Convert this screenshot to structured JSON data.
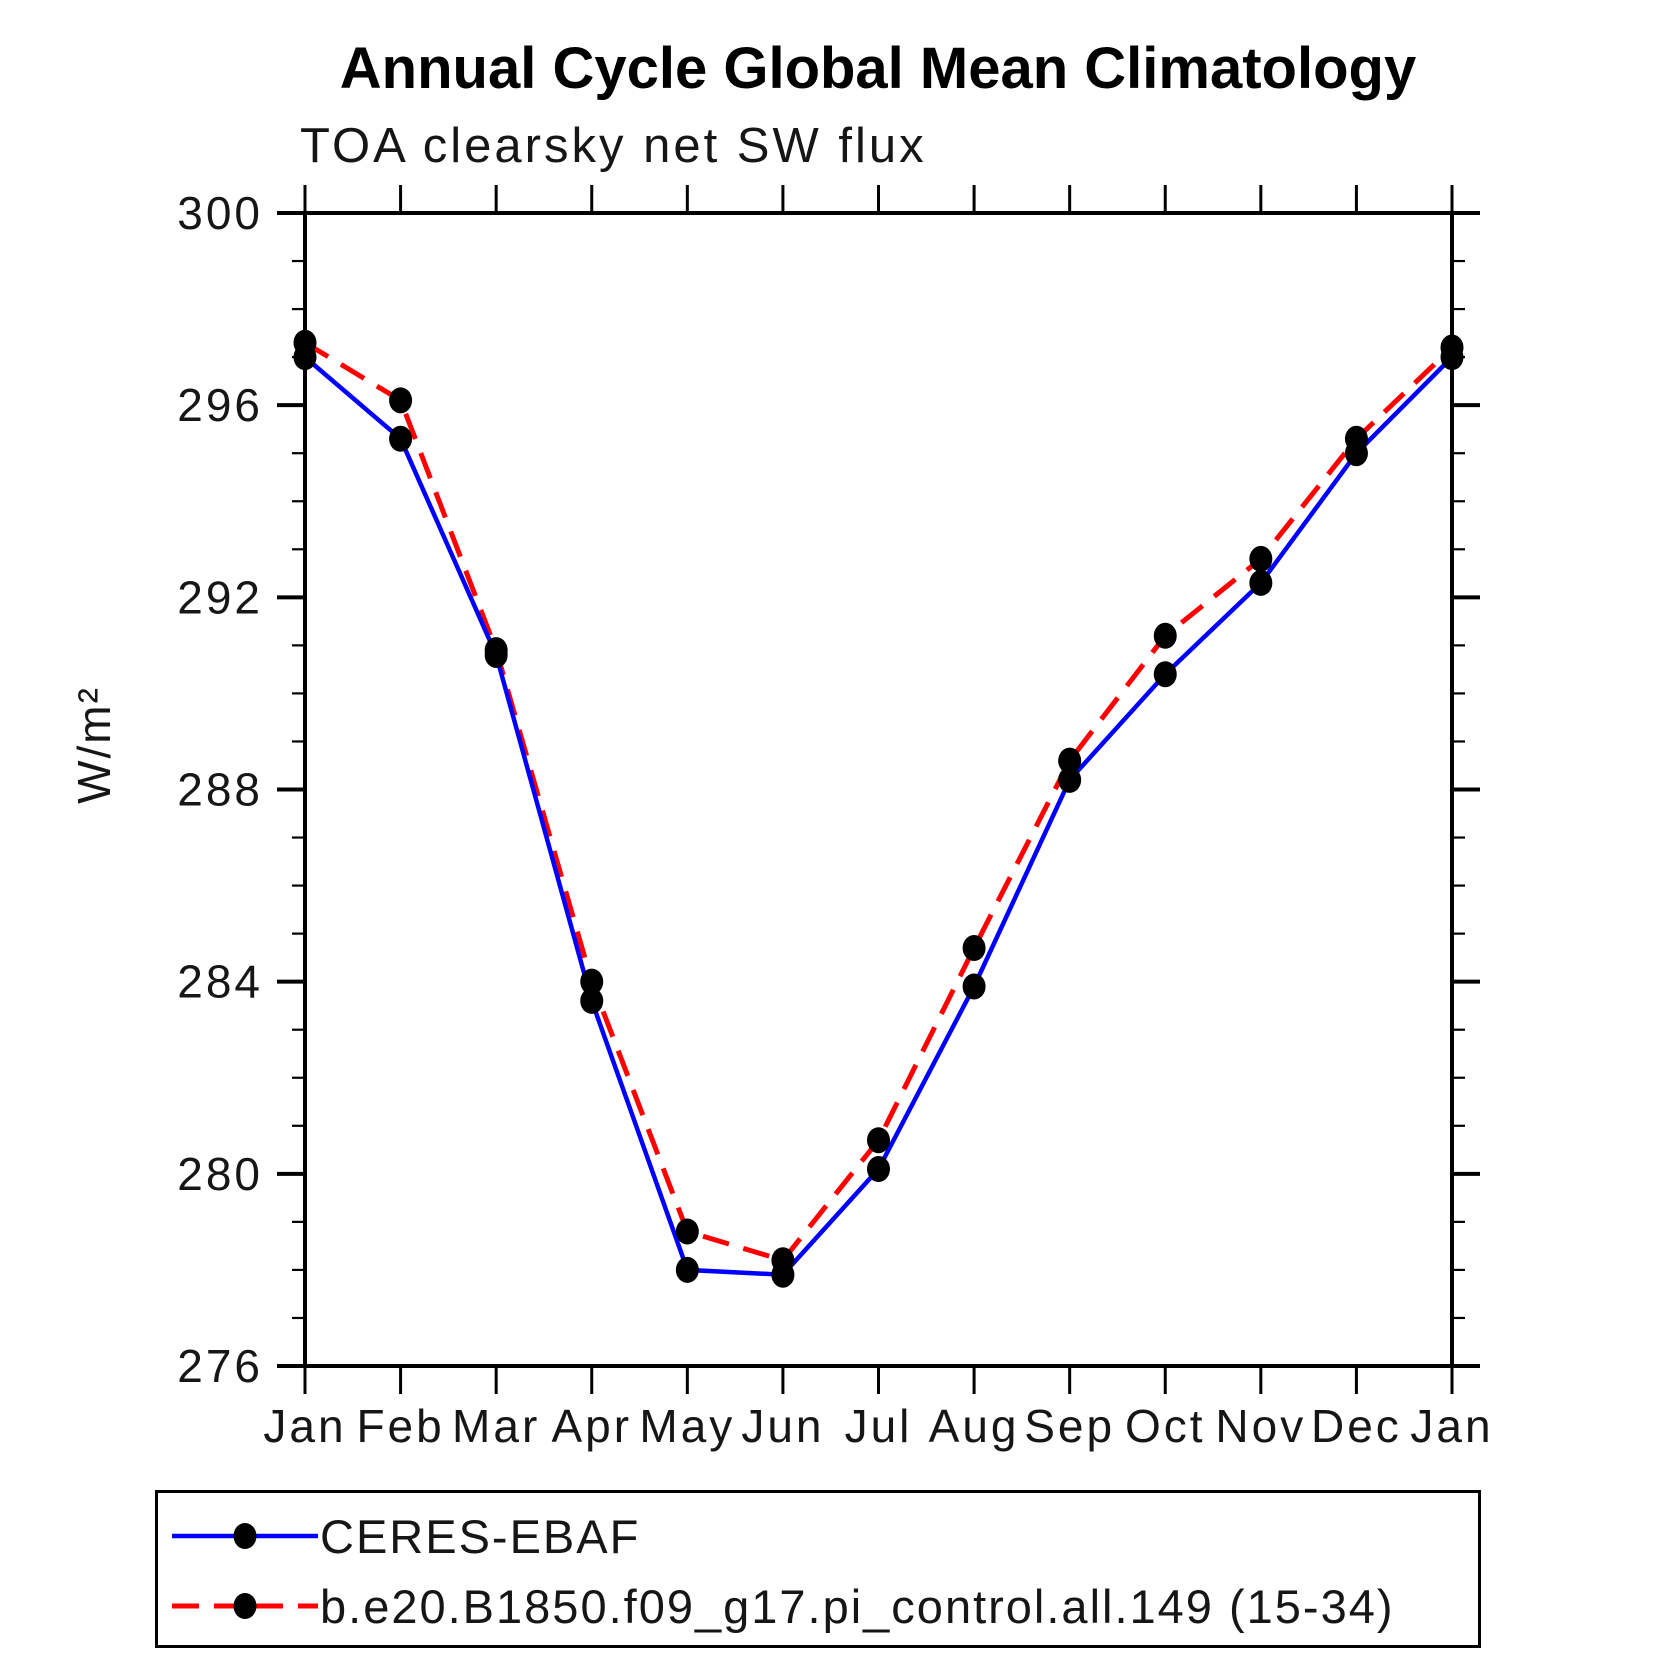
{
  "title": "Annual Cycle Global Mean Climatology",
  "subtitle": "TOA clearsky net SW flux",
  "chart_data": {
    "type": "line",
    "title": "Annual Cycle Global Mean Climatology",
    "subtitle": "TOA clearsky net SW flux",
    "ylabel": "W/m²",
    "xlabel": "",
    "ylim": [
      276,
      300
    ],
    "yticks": [
      276,
      280,
      284,
      288,
      292,
      296,
      300
    ],
    "ytick_minor_interval": 1,
    "grid": false,
    "legend_position": "bottom",
    "categories": [
      "Jan",
      "Feb",
      "Mar",
      "Apr",
      "May",
      "Jun",
      "Jul",
      "Aug",
      "Sep",
      "Oct",
      "Nov",
      "Dec",
      "Jan"
    ],
    "series": [
      {
        "name": "CERES-EBAF",
        "color": "#0000ff",
        "line_style": "solid",
        "marker": "filled-circle",
        "marker_color": "#000000",
        "values": [
          297.0,
          295.3,
          290.8,
          283.6,
          278.0,
          277.9,
          280.1,
          283.9,
          288.2,
          290.4,
          292.3,
          295.0,
          297.0
        ]
      },
      {
        "name": "b.e20.B1850.f09_g17.pi_control.all.149 (15-34)",
        "color": "#ff0000",
        "line_style": "dashed",
        "marker": "filled-circle",
        "marker_color": "#000000",
        "values": [
          297.3,
          296.1,
          290.9,
          284.0,
          278.8,
          278.2,
          280.7,
          284.7,
          288.6,
          291.2,
          292.8,
          295.3,
          297.2
        ]
      }
    ]
  }
}
